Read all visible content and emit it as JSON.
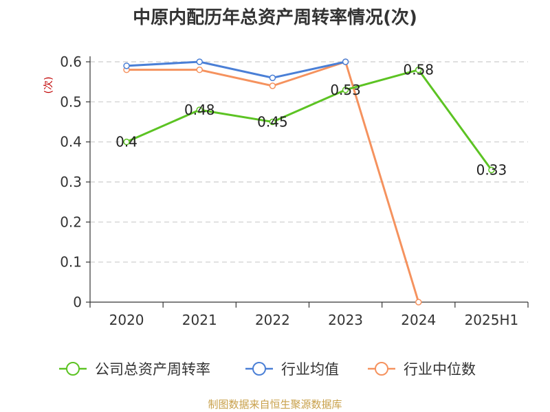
{
  "chart_data": {
    "type": "line",
    "title": "中原内配历年总资产周转率情况(次)",
    "ylabel": "(次)",
    "categories": [
      "2020",
      "2021",
      "2022",
      "2023",
      "2024",
      "2025H1"
    ],
    "ylim": [
      0,
      0.6
    ],
    "yticks": [
      "0",
      "0.1",
      "0.2",
      "0.3",
      "0.4",
      "0.5",
      "0.6"
    ],
    "grid": true,
    "legend_position": "bottom",
    "series": [
      {
        "name": "公司总资产周转率",
        "color": "#5cc323",
        "values": [
          0.4,
          0.48,
          0.45,
          0.53,
          0.58,
          0.33
        ],
        "labels": [
          "0.4",
          "0.48",
          "0.45",
          "0.53",
          "0.58",
          "0.33"
        ]
      },
      {
        "name": "行业均值",
        "color": "#4a7fd6",
        "values": [
          0.59,
          0.6,
          0.56,
          0.6,
          null,
          null
        ]
      },
      {
        "name": "行业中位数",
        "color": "#f5925e",
        "values": [
          0.58,
          0.58,
          0.54,
          0.6,
          0,
          null
        ]
      }
    ]
  },
  "source": "制图数据来自恒生聚源数据库"
}
